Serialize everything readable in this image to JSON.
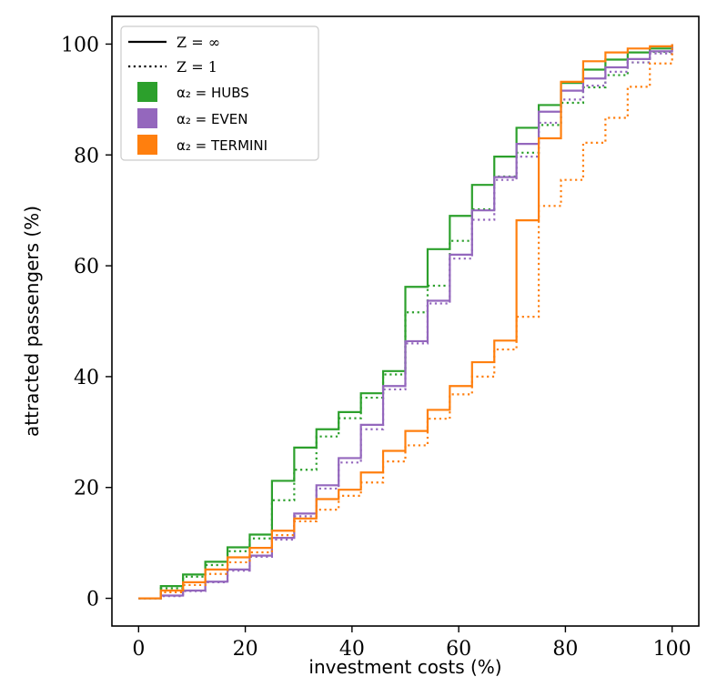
{
  "chart_data": {
    "type": "line",
    "step": true,
    "xlabel": "investment costs (%)",
    "ylabel": "attracted passengers (%)",
    "xlim": [
      -5,
      105
    ],
    "ylim": [
      -5,
      105
    ],
    "xticks": [
      0,
      20,
      40,
      60,
      80,
      100
    ],
    "yticks": [
      0,
      20,
      40,
      60,
      80,
      100
    ],
    "grid": false,
    "legend_position": "top-left",
    "legend": [
      {
        "label": "Z = ∞",
        "style": "solid"
      },
      {
        "label": "Z = 1",
        "style": "dotted"
      },
      {
        "label": "α₂ = HUBS",
        "color": "#2ca02c"
      },
      {
        "label": "α₂ = EVEN",
        "color": "#9467bd"
      },
      {
        "label": "α₂ = TERMINI",
        "color": "#ff7f0e"
      }
    ],
    "x": [
      0,
      4.17,
      8.33,
      12.5,
      16.67,
      20.83,
      25,
      29.17,
      33.33,
      37.5,
      41.67,
      45.83,
      50,
      54.17,
      58.33,
      62.5,
      66.67,
      70.83,
      75,
      79.17,
      83.33,
      87.5,
      91.67,
      95.83,
      100
    ],
    "series": [
      {
        "group": "α₂ = HUBS",
        "z": "Z = ∞",
        "color": "#2ca02c",
        "style": "solid",
        "values": [
          0,
          2.2,
          4.3,
          6.6,
          9.2,
          11.5,
          21.2,
          27.2,
          30.5,
          33.6,
          37.0,
          41.0,
          56.2,
          63.0,
          69.0,
          74.6,
          79.7,
          84.9,
          89.0,
          93.0,
          95.4,
          97.2,
          98.5,
          99.2,
          100
        ]
      },
      {
        "group": "α₂ = HUBS",
        "z": "Z = 1",
        "color": "#2ca02c",
        "style": "dotted",
        "values": [
          0,
          1.8,
          3.9,
          6.0,
          8.5,
          10.8,
          17.7,
          23.2,
          29.2,
          32.5,
          36.2,
          40.4,
          51.6,
          56.4,
          64.5,
          70.2,
          76.1,
          80.4,
          85.4,
          89.4,
          92.2,
          94.4,
          96.7,
          98.6,
          100
        ]
      },
      {
        "group": "α₂ = EVEN",
        "z": "Z = ∞",
        "color": "#9467bd",
        "style": "solid",
        "values": [
          0,
          0.5,
          1.4,
          3.0,
          5.2,
          7.7,
          10.9,
          15.3,
          20.4,
          25.3,
          31.3,
          38.3,
          46.4,
          53.7,
          62.0,
          70.0,
          76.0,
          82.0,
          87.8,
          91.6,
          93.8,
          95.8,
          97.3,
          98.7,
          100
        ]
      },
      {
        "group": "α₂ = EVEN",
        "z": "Z = 1",
        "color": "#9467bd",
        "style": "dotted",
        "values": [
          0,
          0.4,
          1.3,
          2.9,
          5.0,
          7.5,
          10.6,
          14.8,
          19.8,
          24.5,
          30.5,
          37.7,
          46.0,
          53.2,
          61.3,
          68.3,
          75.5,
          79.7,
          85.8,
          90.0,
          92.5,
          95.0,
          96.7,
          98.3,
          100
        ]
      },
      {
        "group": "α₂ = TERMINI",
        "z": "Z = ∞",
        "color": "#ff7f0e",
        "style": "solid",
        "values": [
          0,
          1.4,
          2.9,
          5.2,
          7.4,
          9.1,
          12.2,
          14.4,
          17.9,
          19.6,
          22.7,
          26.6,
          30.2,
          34.0,
          38.3,
          42.6,
          46.5,
          68.2,
          83.0,
          93.2,
          96.9,
          98.5,
          99.2,
          99.6,
          100
        ]
      },
      {
        "group": "α₂ = TERMINI",
        "z": "Z = 1",
        "color": "#ff7f0e",
        "style": "dotted",
        "values": [
          0,
          1.1,
          2.4,
          4.4,
          6.5,
          8.3,
          11.4,
          13.9,
          16.0,
          18.5,
          20.9,
          24.7,
          27.6,
          32.4,
          36.8,
          40.0,
          44.9,
          50.8,
          70.8,
          75.5,
          82.2,
          86.7,
          92.3,
          96.5,
          100
        ]
      }
    ]
  }
}
